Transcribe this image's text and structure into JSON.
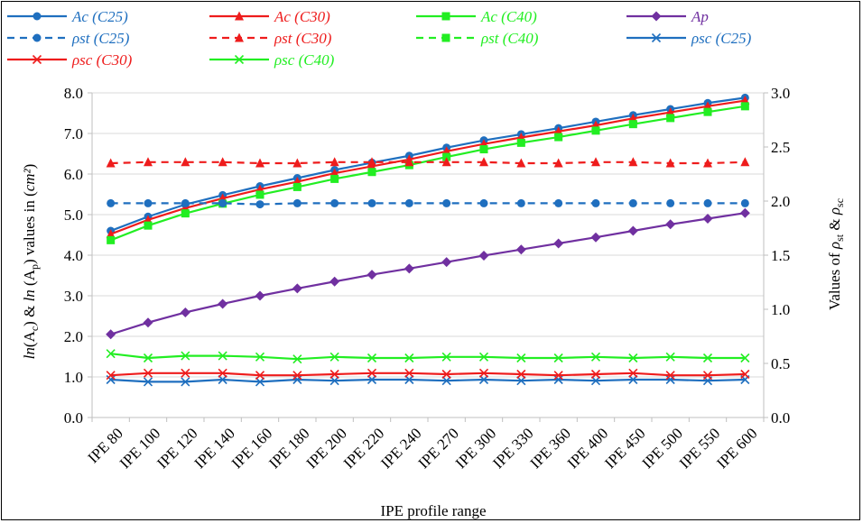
{
  "chart_data": {
    "type": "line",
    "xlabel": "IPE profile range",
    "ylabel": {
      "pre": "ln",
      "a": "(A",
      "sub_a": "c",
      "mid": ") & ",
      "ln2": "ln",
      "b": " (A",
      "sub_b": "p",
      "post": ") values in (",
      "unit": "cm²",
      "close": ")"
    },
    "y2label": {
      "pre": "Values of ",
      "rho1": "ρ",
      "sub1": "st",
      "amp": " & ",
      "rho2": "ρ",
      "sub2": "sc"
    },
    "categories": [
      "IPE  80",
      "IPE 100",
      "IPE 120",
      "IPE 140",
      "IPE 160",
      "IPE 180",
      "IPE 200",
      "IPE 220",
      "IPE 240",
      "IPE 270",
      "IPE 300",
      "IPE 330",
      "IPE 360",
      "IPE 400",
      "IPE 450",
      "IPE 500",
      "IPE 550",
      "IPE 600"
    ],
    "y_left": {
      "min": 0,
      "max": 8,
      "step": 1,
      "ticks": [
        "0.0",
        "1.0",
        "2.0",
        "3.0",
        "4.0",
        "5.0",
        "6.0",
        "7.0",
        "8.0"
      ]
    },
    "y_right": {
      "min": 0,
      "max": 3,
      "step": 0.5,
      "ticks": [
        "0.0",
        "0.5",
        "1.0",
        "1.5",
        "2.0",
        "2.5",
        "3.0"
      ]
    },
    "grid": "horizontal",
    "legend_position": "top",
    "series": [
      {
        "name": "Ac (C25)",
        "color": "#1f6fbf",
        "marker": "circle",
        "dash": false,
        "axis": "left",
        "values": [
          4.6,
          4.95,
          5.25,
          5.48,
          5.7,
          5.9,
          6.1,
          6.28,
          6.45,
          6.65,
          6.83,
          6.98,
          7.13,
          7.29,
          7.45,
          7.6,
          7.75,
          7.88
        ]
      },
      {
        "name": "Ac (C30)",
        "color": "#ee1c1c",
        "marker": "triangle",
        "dash": false,
        "axis": "left",
        "values": [
          4.52,
          4.87,
          5.16,
          5.4,
          5.62,
          5.81,
          6.02,
          6.19,
          6.36,
          6.56,
          6.74,
          6.9,
          7.05,
          7.2,
          7.37,
          7.52,
          7.67,
          7.81
        ]
      },
      {
        "name": "Ac (C40)",
        "color": "#22ee22",
        "marker": "square",
        "dash": false,
        "axis": "left",
        "values": [
          4.37,
          4.73,
          5.03,
          5.27,
          5.49,
          5.68,
          5.88,
          6.05,
          6.22,
          6.42,
          6.61,
          6.77,
          6.91,
          7.07,
          7.23,
          7.38,
          7.53,
          7.67
        ]
      },
      {
        "name": "Ap",
        "color": "#7030a0",
        "marker": "diamond",
        "dash": false,
        "axis": "left",
        "values": [
          2.05,
          2.34,
          2.59,
          2.8,
          3.0,
          3.18,
          3.35,
          3.52,
          3.67,
          3.83,
          3.99,
          4.14,
          4.29,
          4.44,
          4.6,
          4.76,
          4.9,
          5.04
        ]
      },
      {
        "name": "ρst (C25)",
        "color": "#1f6fbf",
        "marker": "circle",
        "dash": true,
        "axis": "right",
        "values": [
          1.98,
          1.98,
          1.98,
          1.98,
          1.97,
          1.98,
          1.98,
          1.98,
          1.98,
          1.98,
          1.98,
          1.98,
          1.98,
          1.98,
          1.98,
          1.98,
          1.98,
          1.98
        ]
      },
      {
        "name": "ρst (C30)",
        "color": "#ee1c1c",
        "marker": "triangle",
        "dash": true,
        "axis": "right",
        "values": [
          2.35,
          2.36,
          2.36,
          2.36,
          2.35,
          2.35,
          2.36,
          2.36,
          2.36,
          2.36,
          2.36,
          2.35,
          2.35,
          2.36,
          2.36,
          2.35,
          2.35,
          2.36
        ]
      },
      {
        "name": "ρst (C40)",
        "color": "#22ee22",
        "marker": "square",
        "dash": true,
        "axis": "right",
        "values": [
          null,
          null,
          null,
          null,
          null,
          null,
          null,
          null,
          null,
          null,
          null,
          null,
          null,
          null,
          null,
          null,
          null,
          null
        ]
      },
      {
        "name": "ρsc (C25)",
        "color": "#1f6fbf",
        "marker": "x",
        "dash": false,
        "axis": "right",
        "values": [
          0.35,
          0.33,
          0.33,
          0.35,
          0.33,
          0.35,
          0.34,
          0.35,
          0.35,
          0.34,
          0.35,
          0.34,
          0.35,
          0.34,
          0.35,
          0.35,
          0.34,
          0.35
        ]
      },
      {
        "name": "ρsc (C30)",
        "color": "#ee1c1c",
        "marker": "x",
        "dash": false,
        "axis": "right",
        "values": [
          0.39,
          0.41,
          0.41,
          0.41,
          0.39,
          0.39,
          0.4,
          0.41,
          0.41,
          0.4,
          0.41,
          0.4,
          0.39,
          0.4,
          0.41,
          0.39,
          0.39,
          0.4
        ]
      },
      {
        "name": "ρsc (C40)",
        "color": "#22ee22",
        "marker": "x",
        "dash": false,
        "axis": "right",
        "values": [
          0.59,
          0.55,
          0.57,
          0.57,
          0.56,
          0.54,
          0.56,
          0.55,
          0.55,
          0.56,
          0.56,
          0.55,
          0.55,
          0.56,
          0.55,
          0.56,
          0.55,
          0.55
        ]
      }
    ]
  }
}
